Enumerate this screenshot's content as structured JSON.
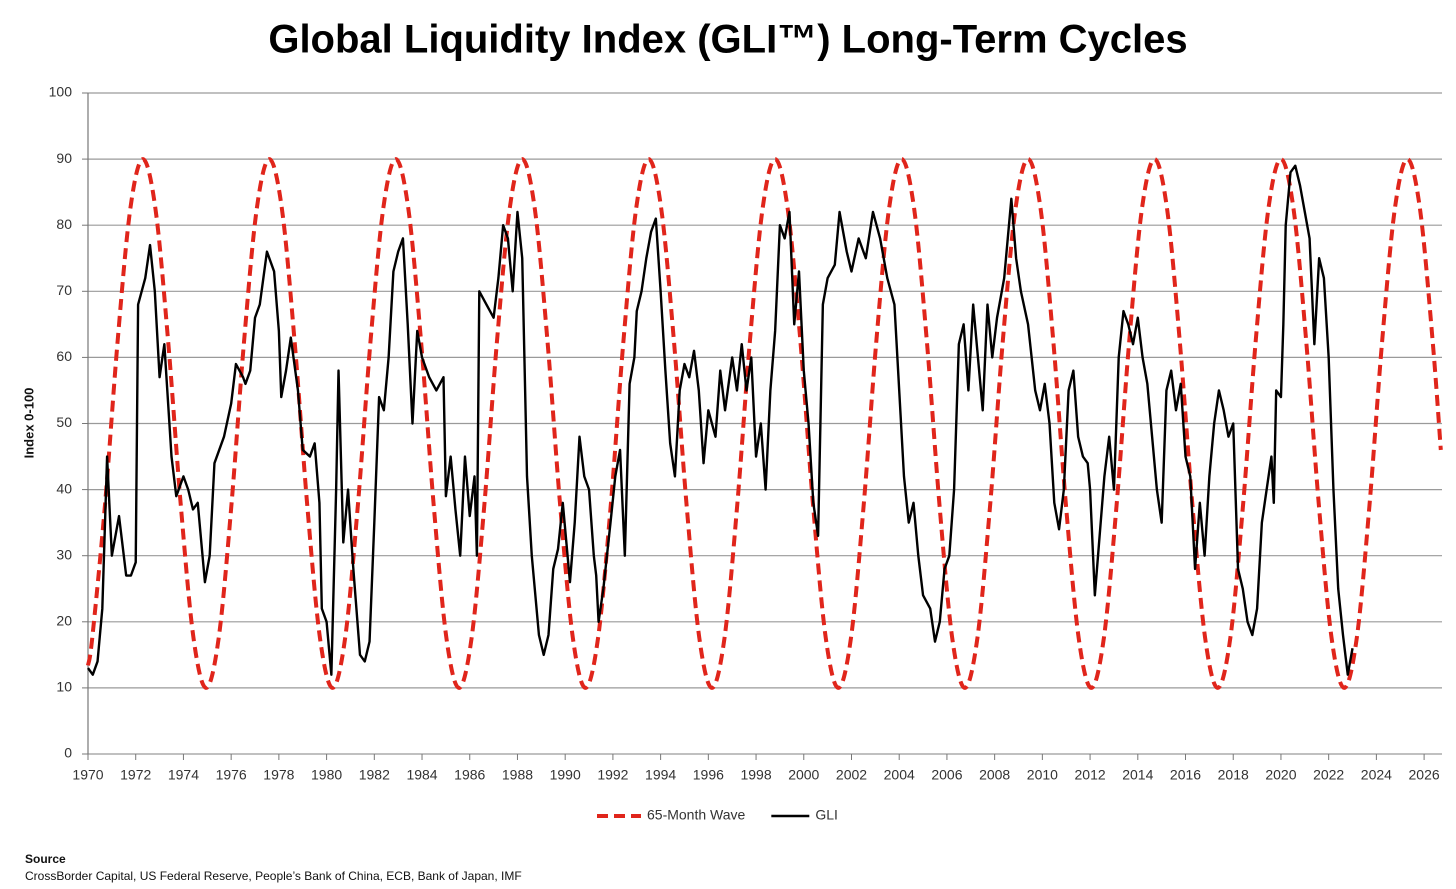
{
  "chart_data": {
    "type": "line",
    "title": "Global Liquidity Index (GLI™) Long-Term Cycles",
    "y_label": "Index 0-100",
    "xlim": [
      1970,
      2026.75
    ],
    "ylim": [
      0,
      100
    ],
    "xticks": [
      1970,
      1972,
      1974,
      1976,
      1978,
      1980,
      1982,
      1984,
      1986,
      1988,
      1990,
      1992,
      1994,
      1996,
      1998,
      2000,
      2002,
      2004,
      2006,
      2008,
      2010,
      2012,
      2014,
      2016,
      2018,
      2020,
      2022,
      2024,
      2026
    ],
    "yticks": [
      0,
      10,
      20,
      30,
      40,
      50,
      60,
      70,
      80,
      90,
      100
    ],
    "grid": true,
    "legend": "bottom",
    "series": [
      {
        "name": "65-Month Wave",
        "color": "#e0251b",
        "line_style": "dashed",
        "smooth": true,
        "x": [
          1970,
          1970.18,
          1970.71,
          1971.24,
          1971.77,
          1972.3,
          1972.83,
          1973.36,
          1973.89,
          1974.42,
          1974.95,
          1975.48,
          1976.01,
          1976.54,
          1977.07,
          1977.6,
          1978.13,
          1978.66,
          1979.19,
          1979.72,
          1980.25,
          1980.78,
          1981.31,
          1981.84,
          1982.37,
          1982.9,
          1983.43,
          1983.96,
          1984.49,
          1985.02,
          1985.55,
          1986.08,
          1986.61,
          1987.14,
          1987.67,
          1988.2,
          1988.73,
          1989.26,
          1989.79,
          1990.32,
          1990.85,
          1991.38,
          1991.91,
          1992.44,
          1992.97,
          1993.5,
          1994.03,
          1994.56,
          1995.09,
          1995.62,
          1996.15,
          1996.68,
          1997.21,
          1997.74,
          1998.27,
          1998.8,
          1999.33,
          1999.86,
          2000.39,
          2000.92,
          2001.45,
          2001.98,
          2002.51,
          2003.04,
          2003.57,
          2004.1,
          2004.63,
          2005.16,
          2005.69,
          2006.22,
          2006.75,
          2007.28,
          2007.81,
          2008.34,
          2008.87,
          2009.4,
          2009.93,
          2010.46,
          2010.99,
          2011.52,
          2012.05,
          2012.58,
          2013.11,
          2013.64,
          2014.17,
          2014.7,
          2015.23,
          2015.76,
          2016.29,
          2016.82,
          2017.35,
          2017.88,
          2018.41,
          2018.94,
          2019.47,
          2020.0,
          2020.53,
          2021.06,
          2021.59,
          2022.12,
          2022.65,
          2023.18,
          2023.71,
          2024.24,
          2024.77,
          2025.3,
          2025.83,
          2026.36,
          2026.7
        ],
        "values": [
          13.4,
          17.6,
          37.6,
          62.4,
          82.4,
          90,
          82.4,
          62.4,
          37.6,
          17.6,
          10,
          17.6,
          37.6,
          62.4,
          82.4,
          90,
          82.4,
          62.4,
          37.6,
          17.6,
          10,
          17.6,
          37.6,
          62.4,
          82.4,
          90,
          82.4,
          62.4,
          37.6,
          17.6,
          10,
          17.6,
          37.6,
          62.4,
          82.4,
          90,
          82.4,
          62.4,
          37.6,
          17.6,
          10,
          17.6,
          37.6,
          62.4,
          82.4,
          90,
          82.4,
          62.4,
          37.6,
          17.6,
          10,
          17.6,
          37.6,
          62.4,
          82.4,
          90,
          82.4,
          62.4,
          37.6,
          17.6,
          10,
          17.6,
          37.6,
          62.4,
          82.4,
          90,
          82.4,
          62.4,
          37.6,
          17.6,
          10,
          17.6,
          37.6,
          62.4,
          82.4,
          90,
          82.4,
          62.4,
          37.6,
          17.6,
          10,
          17.6,
          37.6,
          62.4,
          82.4,
          90,
          82.4,
          62.4,
          37.6,
          17.6,
          10,
          17.6,
          37.6,
          62.4,
          82.4,
          90,
          82.4,
          62.4,
          37.6,
          17.6,
          10,
          17.6,
          37.6,
          62.4,
          82.4,
          90,
          82.4,
          62.4,
          46.0
        ]
      },
      {
        "name": "GLI",
        "color": "#000000",
        "line_style": "solid",
        "smooth": false,
        "x": [
          1970.0,
          1970.2,
          1970.4,
          1970.6,
          1970.8,
          1971.0,
          1971.3,
          1971.6,
          1971.8,
          1972.0,
          1972.1,
          1972.4,
          1972.6,
          1972.8,
          1973.0,
          1973.2,
          1973.5,
          1973.7,
          1974.0,
          1974.2,
          1974.4,
          1974.6,
          1974.9,
          1975.1,
          1975.3,
          1975.5,
          1975.7,
          1976.0,
          1976.2,
          1976.5,
          1976.6,
          1976.8,
          1977.0,
          1977.2,
          1977.5,
          1977.8,
          1978.0,
          1978.1,
          1978.3,
          1978.5,
          1978.8,
          1979.0,
          1979.3,
          1979.5,
          1979.7,
          1979.8,
          1980.0,
          1980.2,
          1980.4,
          1980.5,
          1980.7,
          1980.9,
          1981.1,
          1981.4,
          1981.6,
          1981.8,
          1982.0,
          1982.2,
          1982.4,
          1982.6,
          1982.8,
          1983.0,
          1983.2,
          1983.4,
          1983.6,
          1983.8,
          1984.0,
          1984.3,
          1984.6,
          1984.9,
          1985.0,
          1985.2,
          1985.4,
          1985.6,
          1985.8,
          1986.0,
          1986.2,
          1986.3,
          1986.4,
          1986.7,
          1987.0,
          1987.2,
          1987.4,
          1987.6,
          1987.8,
          1988.0,
          1988.2,
          1988.4,
          1988.6,
          1988.9,
          1989.1,
          1989.3,
          1989.5,
          1989.7,
          1989.9,
          1990.2,
          1990.4,
          1990.6,
          1990.8,
          1991.0,
          1991.2,
          1991.3,
          1991.4,
          1991.6,
          1991.9,
          1992.1,
          1992.3,
          1992.5,
          1992.7,
          1992.9,
          1993.0,
          1993.2,
          1993.4,
          1993.6,
          1993.8,
          1994.0,
          1994.2,
          1994.4,
          1994.6,
          1994.8,
          1995.0,
          1995.2,
          1995.4,
          1995.6,
          1995.8,
          1996.0,
          1996.3,
          1996.5,
          1996.7,
          1997.0,
          1997.2,
          1997.4,
          1997.6,
          1997.8,
          1998.0,
          1998.2,
          1998.4,
          1998.6,
          1998.8,
          1999.0,
          1999.2,
          1999.4,
          1999.6,
          1999.8,
          2000.0,
          2000.2,
          2000.4,
          2000.6,
          2000.8,
          2001.0,
          2001.3,
          2001.5,
          2001.8,
          2002.0,
          2002.3,
          2002.6,
          2002.9,
          2003.2,
          2003.5,
          2003.8,
          2004.0,
          2004.2,
          2004.4,
          2004.6,
          2004.8,
          2005.0,
          2005.3,
          2005.5,
          2005.7,
          2005.9,
          2006.1,
          2006.3,
          2006.5,
          2006.7,
          2006.9,
          2007.1,
          2007.3,
          2007.5,
          2007.7,
          2007.9,
          2008.1,
          2008.4,
          2008.7,
          2008.9,
          2009.1,
          2009.4,
          2009.7,
          2009.9,
          2010.1,
          2010.3,
          2010.5,
          2010.7,
          2010.9,
          2011.1,
          2011.3,
          2011.5,
          2011.7,
          2011.9,
          2012.0,
          2012.2,
          2012.4,
          2012.6,
          2012.8,
          2013.0,
          2013.2,
          2013.4,
          2013.6,
          2013.8,
          2014.0,
          2014.2,
          2014.4,
          2014.6,
          2014.8,
          2015.0,
          2015.2,
          2015.4,
          2015.6,
          2015.8,
          2016.0,
          2016.2,
          2016.4,
          2016.6,
          2016.8,
          2017.0,
          2017.2,
          2017.4,
          2017.6,
          2017.8,
          2018.0,
          2018.2,
          2018.4,
          2018.6,
          2018.8,
          2019.0,
          2019.2,
          2019.4,
          2019.6,
          2019.7,
          2019.8,
          2020.0,
          2020.1,
          2020.2,
          2020.4,
          2020.6,
          2020.8,
          2021.0,
          2021.2,
          2021.4,
          2021.6,
          2021.8,
          2022.0,
          2022.2,
          2022.4,
          2022.6,
          2022.8,
          2022.9,
          2023.0
        ],
        "values": [
          13,
          12,
          14,
          22,
          45,
          30,
          36,
          27,
          27,
          29,
          68,
          72,
          77,
          70,
          57,
          62,
          45,
          39,
          42,
          40,
          37,
          38,
          26,
          30,
          44,
          46,
          48,
          53,
          59,
          57,
          56,
          58,
          66,
          68,
          76,
          73,
          64,
          54,
          58,
          63,
          55,
          46,
          45,
          47,
          38,
          22,
          20,
          12,
          40,
          58,
          32,
          40,
          29,
          15,
          14,
          17,
          35,
          54,
          52,
          60,
          73,
          76,
          78,
          65,
          50,
          64,
          60,
          57,
          55,
          57,
          39,
          45,
          37,
          30,
          45,
          36,
          42,
          30,
          70,
          68,
          66,
          72,
          80,
          78,
          70,
          82,
          75,
          42,
          30,
          18,
          15,
          18,
          28,
          31,
          38,
          26,
          35,
          48,
          42,
          40,
          30,
          27,
          20,
          25,
          35,
          42,
          46,
          30,
          56,
          60,
          67,
          70,
          75,
          79,
          81,
          70,
          58,
          47,
          42,
          55,
          59,
          57,
          61,
          55,
          44,
          52,
          48,
          58,
          52,
          60,
          55,
          62,
          55,
          60,
          45,
          50,
          40,
          55,
          64,
          80,
          78,
          82,
          65,
          73,
          58,
          50,
          38,
          33,
          68,
          72,
          74,
          82,
          76,
          73,
          78,
          75,
          82,
          78,
          72,
          68,
          55,
          42,
          35,
          38,
          30,
          24,
          22,
          17,
          20,
          28,
          30,
          40,
          62,
          65,
          55,
          68,
          60,
          52,
          68,
          60,
          66,
          72,
          84,
          75,
          70,
          65,
          55,
          52,
          56,
          50,
          38,
          34,
          40,
          55,
          58,
          48,
          45,
          44,
          40,
          24,
          33,
          42,
          48,
          40,
          60,
          67,
          65,
          62,
          66,
          60,
          56,
          48,
          40,
          35,
          55,
          58,
          52,
          56,
          45,
          42,
          28,
          38,
          30,
          42,
          50,
          55,
          52,
          48,
          50,
          28,
          25,
          20,
          18,
          22,
          35,
          40,
          45,
          38,
          55,
          54,
          65,
          80,
          88,
          89,
          86,
          82,
          78,
          62,
          75,
          72,
          60,
          40,
          25,
          18,
          12,
          14,
          16
        ]
      }
    ],
    "source_label": "Source",
    "source_text": "CrossBorder Capital, US Federal Reserve, People’s Bank of China, ECB, Bank of Japan, IMF"
  }
}
